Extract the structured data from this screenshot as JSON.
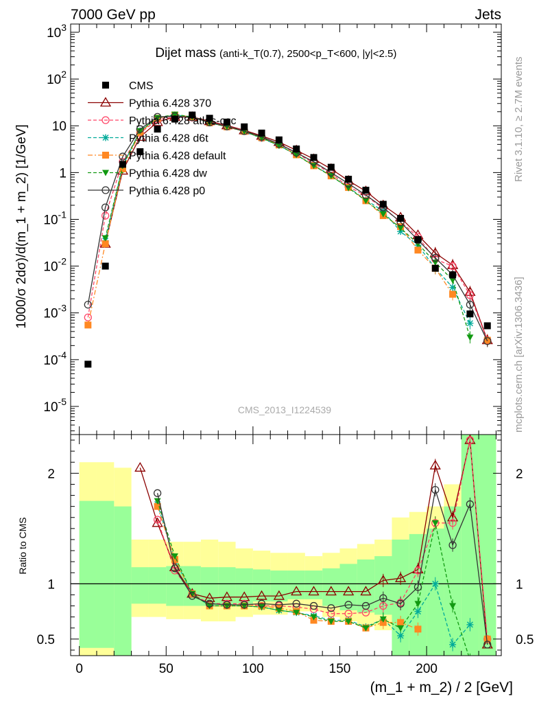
{
  "header": {
    "left": "7000 GeV pp",
    "right": "Jets"
  },
  "side_text": {
    "rivet": "Rivet 3.1.10, ≥ 2.7M events",
    "mcplots": "mcplots.cern.ch [arXiv:1306.3436]"
  },
  "chart_data": [
    {
      "type": "scatter",
      "panel": "main",
      "title": "Dijet mass",
      "subtitle": "(anti-k_T(0.7), 2500<p_T<600, |y|<2.5)",
      "watermark": "CMS_2013_I1224539",
      "ylabel": "1000/σ 2dσ)/d(m_1 + m_2) [1/GeV]",
      "yscale": "log",
      "ylim": [
        2.5e-06,
        1500
      ],
      "xlim": [
        -5,
        243
      ],
      "x_ticks": [
        0,
        50,
        100,
        150,
        200
      ],
      "y_ticks": [
        "10^{-5}",
        "10^{-4}",
        "10^{-3}",
        "10^{-2}",
        "10^{-1}",
        "1",
        "10",
        "10^{2}",
        "10^{3}"
      ],
      "legend_position": "top-left",
      "x": [
        5,
        15,
        25,
        35,
        45,
        55,
        65,
        75,
        85,
        95,
        105,
        115,
        125,
        135,
        145,
        155,
        165,
        175,
        185,
        195,
        205,
        215,
        225,
        235
      ],
      "series": [
        {
          "name": "CMS",
          "color": "#000000",
          "marker": "square",
          "line": "none",
          "values": [
            8e-05,
            0.01,
            1.5,
            2.8,
            8.5,
            14,
            17,
            14.5,
            12,
            9.5,
            7,
            5,
            3.2,
            2.1,
            1.3,
            0.72,
            0.42,
            0.21,
            0.105,
            0.037,
            0.009,
            0.0065,
            0.00095,
            0.00053
          ]
        },
        {
          "name": "Pythia 6.428 370",
          "color": "#8b0000",
          "marker": "triangle-open",
          "line": "solid",
          "values": [
            null,
            0.03,
            1.1,
            5.8,
            12,
            15.5,
            15.5,
            12.5,
            10.2,
            8,
            6.1,
            4.5,
            3,
            1.95,
            1.2,
            0.67,
            0.4,
            0.2,
            0.11,
            0.046,
            0.019,
            0.0105,
            0.0028,
            0.00026
          ]
        },
        {
          "name": "Pythia 6.428 atlas-csc",
          "color": "#ff4466",
          "marker": "circle-open",
          "line": "dashed",
          "values": [
            0.0008,
            0.12,
            1.7,
            7,
            13.5,
            15.5,
            15,
            12,
            9.8,
            7.8,
            5.5,
            4,
            2.6,
            1.6,
            0.95,
            0.5,
            0.32,
            0.17,
            0.09,
            0.042,
            0.014,
            0.01,
            0.0024,
            0.00026
          ]
        },
        {
          "name": "Pythia 6.428 d6t",
          "color": "#00aa99",
          "marker": "star",
          "line": "dashed",
          "values": [
            null,
            0.035,
            1.4,
            7.8,
            14.5,
            17,
            15.5,
            11.6,
            9.6,
            7.6,
            5.4,
            3.8,
            2.4,
            1.45,
            0.85,
            0.48,
            0.26,
            0.15,
            0.055,
            0.028,
            0.009,
            0.0035,
            0.0006,
            null
          ]
        },
        {
          "name": "Pythia 6.428 default",
          "color": "#ff8822",
          "marker": "square-filled",
          "line": "dashdot",
          "values": [
            0.00055,
            0.03,
            1.2,
            7.3,
            14.5,
            17,
            15.5,
            11.6,
            9.5,
            7.6,
            5.6,
            3.9,
            2.4,
            1.4,
            0.85,
            0.48,
            0.25,
            0.12,
            0.07,
            0.022,
            0.009,
            0.0025,
            null,
            0.00026
          ]
        },
        {
          "name": "Pythia 6.428 dw",
          "color": "#119911",
          "marker": "triangle-down",
          "line": "dashed",
          "values": [
            null,
            0.04,
            1.4,
            7.8,
            14.8,
            17.5,
            15.5,
            11.6,
            9.6,
            7.6,
            5.5,
            3.8,
            2.4,
            1.4,
            0.85,
            0.47,
            0.25,
            0.13,
            0.065,
            0.03,
            0.012,
            0.005,
            0.0003,
            null
          ]
        },
        {
          "name": "Pythia 6.428 p0",
          "color": "#333333",
          "marker": "circle-open",
          "line": "solid",
          "values": [
            0.0015,
            0.18,
            2.2,
            8.5,
            15.5,
            16,
            15.2,
            11.8,
            9.7,
            7.7,
            5.8,
            4.1,
            2.65,
            1.7,
            1.0,
            0.58,
            0.33,
            0.18,
            0.087,
            0.036,
            0.015,
            0.0065,
            0.0015,
            0.00025
          ]
        }
      ]
    },
    {
      "type": "line",
      "panel": "ratio",
      "ylabel": "Ratio to CMS",
      "xlabel": "(m_1 + m_2) / 2 [GeV]",
      "ylim": [
        0.35,
        2.35
      ],
      "y_ticks": [
        "0.5",
        "1",
        "2"
      ],
      "x_ticks": [
        "0",
        "50",
        "100",
        "150",
        "200"
      ],
      "reference_line": 1,
      "bands": {
        "x_edges": [
          0,
          10,
          20,
          30,
          40,
          50,
          60,
          70,
          80,
          90,
          100,
          110,
          120,
          130,
          140,
          150,
          160,
          170,
          180,
          190,
          200,
          210,
          220,
          230,
          240
        ],
        "yellow_low": [
          0.35,
          0.35,
          0.35,
          0.7,
          0.7,
          0.68,
          0.68,
          0.66,
          0.66,
          0.7,
          0.72,
          0.72,
          0.75,
          0.75,
          0.7,
          0.66,
          0.62,
          0.58,
          0.35,
          0.35,
          0.35,
          0.35,
          0.35,
          0.35
        ],
        "yellow_high": [
          2.1,
          2.1,
          2.05,
          1.4,
          1.4,
          1.38,
          1.38,
          1.4,
          1.38,
          1.32,
          1.3,
          1.28,
          1.28,
          1.25,
          1.28,
          1.32,
          1.36,
          1.4,
          1.6,
          1.65,
          1.7,
          1.9,
          2.35,
          2.35
        ],
        "green_low": [
          0.42,
          0.42,
          0.35,
          0.82,
          0.82,
          0.8,
          0.8,
          0.8,
          0.8,
          0.82,
          0.84,
          0.84,
          0.86,
          0.86,
          0.8,
          0.76,
          0.74,
          0.72,
          0.35,
          0.35,
          0.35,
          0.35,
          0.35,
          0.35
        ],
        "green_high": [
          1.75,
          1.75,
          1.7,
          1.15,
          1.15,
          1.16,
          1.16,
          1.15,
          1.15,
          1.14,
          1.13,
          1.12,
          1.12,
          1.12,
          1.14,
          1.18,
          1.22,
          1.25,
          1.4,
          1.45,
          1.5,
          1.7,
          2.35,
          2.35
        ]
      },
      "series": [
        {
          "name": "Pythia 6.428 370",
          "color": "#8b0000",
          "marker": "triangle-open",
          "line": "solid",
          "values": [
            null,
            null,
            null,
            2.05,
            1.55,
            1.15,
            0.91,
            0.87,
            0.88,
            0.88,
            0.89,
            0.89,
            0.93,
            0.93,
            0.93,
            0.93,
            0.93,
            1.03,
            1.05,
            1.13,
            2.07,
            1.6,
            2.3,
            0.45
          ]
        },
        {
          "name": "Pythia 6.428 atlas-csc",
          "color": "#ff4466",
          "marker": "circle-open",
          "line": "dashed",
          "values": [
            null,
            null,
            null,
            null,
            1.58,
            1.12,
            0.91,
            0.82,
            0.82,
            0.82,
            0.8,
            0.8,
            0.79,
            0.77,
            0.73,
            0.73,
            0.74,
            0.8,
            0.83,
            1.12,
            1.55,
            1.55,
            2.3,
            0.5
          ]
        },
        {
          "name": "Pythia 6.428 d6t",
          "color": "#00aa99",
          "marker": "star",
          "line": "dashed",
          "values": [
            null,
            null,
            null,
            null,
            1.72,
            1.22,
            0.91,
            0.8,
            0.8,
            0.8,
            0.79,
            0.76,
            0.74,
            0.71,
            0.67,
            0.67,
            0.61,
            0.68,
            0.53,
            0.75,
            1.0,
            0.45,
            0.63,
            null
          ]
        },
        {
          "name": "Pythia 6.428 default",
          "color": "#ff8822",
          "marker": "square-filled",
          "line": "dashdot",
          "values": [
            null,
            null,
            null,
            null,
            1.7,
            1.22,
            0.91,
            0.8,
            0.8,
            0.8,
            0.8,
            0.78,
            0.75,
            0.67,
            0.66,
            0.66,
            0.6,
            0.65,
            0.65,
            0.59,
            null,
            null,
            null,
            0.5
          ]
        },
        {
          "name": "Pythia 6.428 dw",
          "color": "#119911",
          "marker": "triangle-down",
          "line": "dashed",
          "values": [
            null,
            null,
            null,
            null,
            1.75,
            1.25,
            0.91,
            0.8,
            0.8,
            0.8,
            0.79,
            0.76,
            0.74,
            0.7,
            0.66,
            0.66,
            0.6,
            0.68,
            0.6,
            0.82,
            1.55,
            0.8,
            0.31,
            null
          ]
        },
        {
          "name": "Pythia 6.428 p0",
          "color": "#333333",
          "marker": "circle-open",
          "line": "solid",
          "values": [
            null,
            null,
            null,
            null,
            1.82,
            1.14,
            0.89,
            0.82,
            0.81,
            0.81,
            0.82,
            0.81,
            0.82,
            0.8,
            0.78,
            0.81,
            0.8,
            0.87,
            0.82,
            0.97,
            1.85,
            1.35,
            1.72,
            0.45
          ]
        }
      ]
    }
  ]
}
